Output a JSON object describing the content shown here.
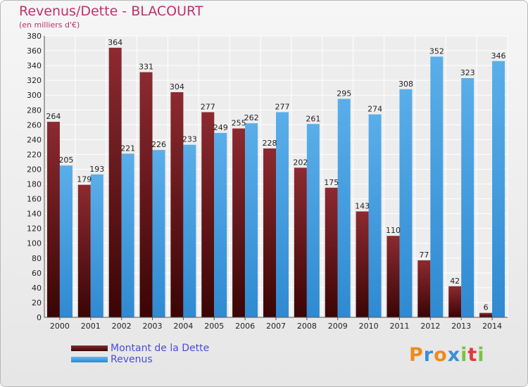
{
  "chart_data": {
    "type": "bar",
    "title": "Revenus/Dette - BLACOURT",
    "subtitle": "(en milliers d'€)",
    "categories": [
      "2000",
      "2001",
      "2002",
      "2003",
      "2004",
      "2005",
      "2006",
      "2007",
      "2008",
      "2009",
      "2010",
      "2011",
      "2012",
      "2013",
      "2014"
    ],
    "series": [
      {
        "name": "Montant de la Dette",
        "values": [
          264,
          179,
          364,
          331,
          304,
          277,
          255,
          228,
          202,
          175,
          143,
          110,
          77,
          42,
          6
        ],
        "color": "#7a1c22"
      },
      {
        "name": "Revenus",
        "values": [
          205,
          193,
          221,
          226,
          233,
          249,
          262,
          277,
          261,
          295,
          274,
          308,
          352,
          323,
          346
        ],
        "color": "#4aa3e6"
      }
    ],
    "ylim": [
      0,
      380
    ],
    "yticks": [
      0,
      20,
      40,
      60,
      80,
      100,
      120,
      140,
      160,
      180,
      200,
      220,
      240,
      260,
      280,
      300,
      320,
      340,
      360,
      380
    ],
    "grid": true,
    "legend": "bottom-left"
  },
  "logo": {
    "letters": [
      "P",
      "r",
      "o",
      "x",
      "i",
      "t",
      "i"
    ],
    "colors": [
      "#f08a1c",
      "#3a8fd8",
      "#f08a1c",
      "#3a8fd8",
      "#7cc242",
      "#e23a3a",
      "#7cc242"
    ]
  }
}
